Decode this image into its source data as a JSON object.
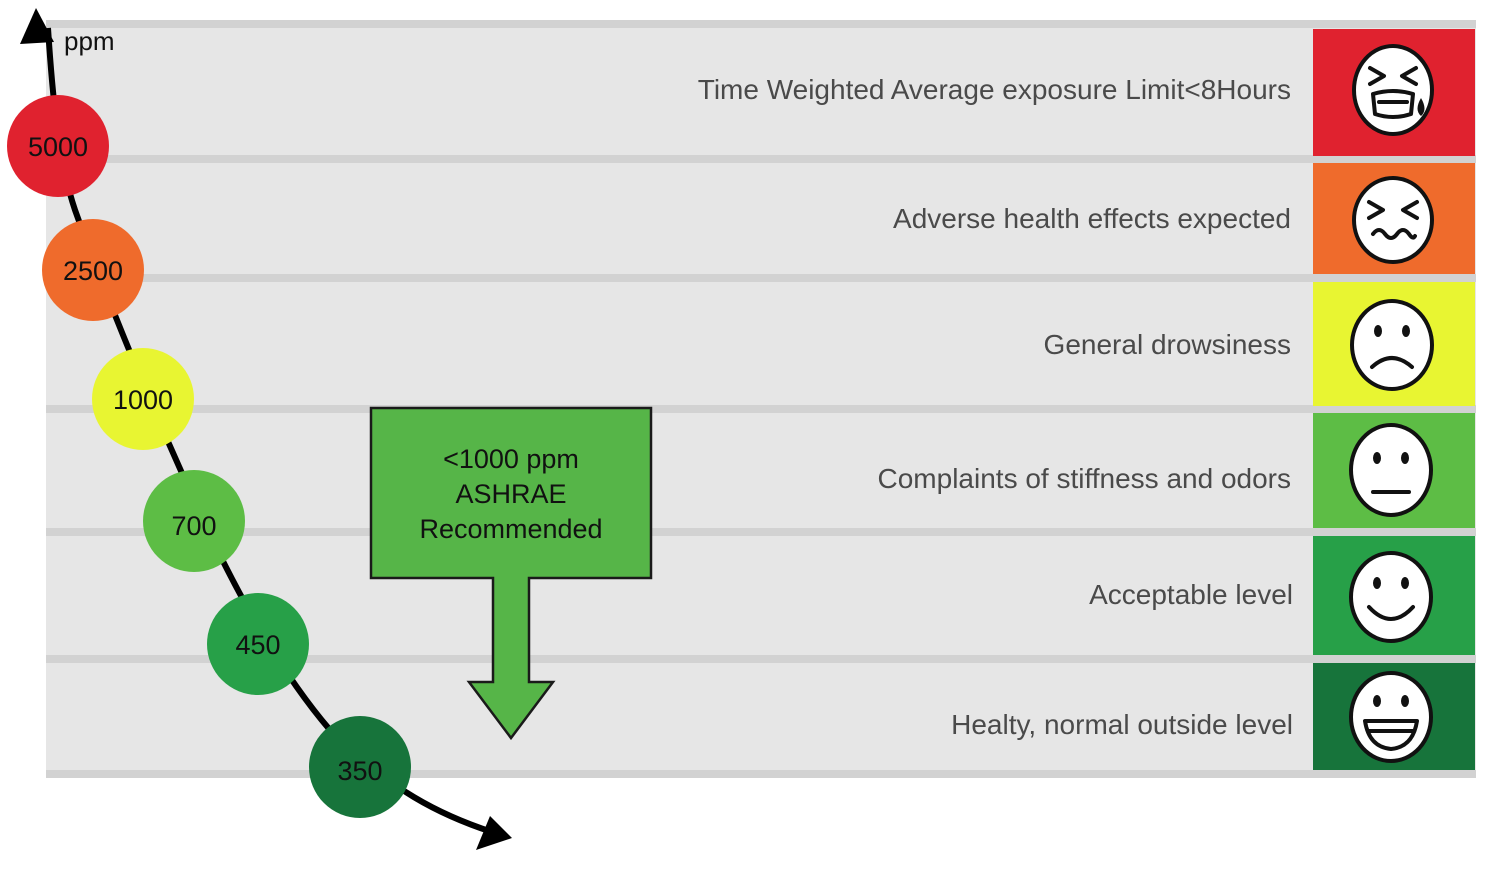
{
  "axis": {
    "unit_label": "ppm"
  },
  "levels": [
    {
      "ppm_label": "5000",
      "description": "Time Weighted Average exposure Limit<8Hours",
      "color": "#e0222f",
      "face": "crying-face-icon"
    },
    {
      "ppm_label": "2500",
      "description": "Adverse health effects expected",
      "color": "#ef6b2c",
      "face": "distressed-face-icon"
    },
    {
      "ppm_label": "1000",
      "description": "General drowsiness",
      "color": "#e8f532",
      "face": "sad-face-icon"
    },
    {
      "ppm_label": "700",
      "description": "Complaints of stiffness and odors",
      "color": "#5dbd45",
      "face": "neutral-face-icon"
    },
    {
      "ppm_label": "450",
      "description": "Acceptable level",
      "color": "#27a048",
      "face": "smiling-face-icon"
    },
    {
      "ppm_label": "350",
      "description": "Healty, normal outside level",
      "color": "#17743b",
      "face": "grinning-face-icon"
    }
  ],
  "callout": {
    "lines": [
      "<1000 ppm",
      "ASHRAE",
      "Recommended"
    ],
    "color": "#56b548"
  },
  "colors": {
    "background_band": "#e6e6e6",
    "divider": "#d2d2d2",
    "curve": "#000000"
  }
}
